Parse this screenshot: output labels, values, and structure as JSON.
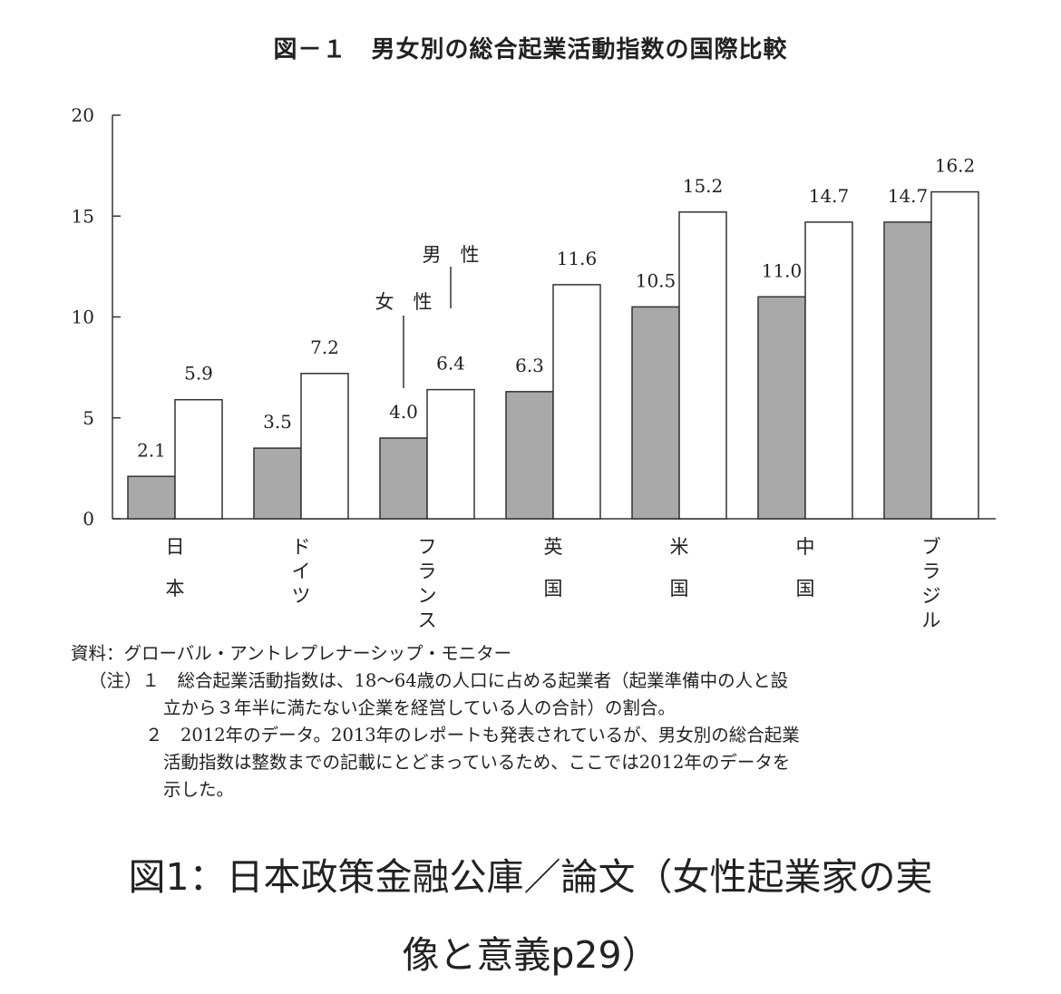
{
  "chart_data": {
    "type": "bar",
    "title": "図－１　男女別の総合起業活動指数の国際比較",
    "categories": [
      "日本",
      "ドイツ",
      "フランス",
      "英国",
      "米国",
      "中国",
      "ブラジル"
    ],
    "series": [
      {
        "name": "女　性",
        "color": "#a9a9a9",
        "values": [
          2.1,
          3.5,
          4.0,
          6.3,
          10.5,
          11.0,
          14.7
        ]
      },
      {
        "name": "男　性",
        "color": "#ffffff",
        "values": [
          5.9,
          7.2,
          6.4,
          11.6,
          15.2,
          14.7,
          16.2
        ]
      }
    ],
    "value_labels": {
      "female": [
        "2.1",
        "3.5",
        "4.0",
        "6.3",
        "10.5",
        "11.0",
        "14.7"
      ],
      "male": [
        "5.9",
        "7.2",
        "6.4",
        "11.6",
        "15.2",
        "14.7",
        "16.2"
      ]
    },
    "ylim": [
      0,
      20
    ],
    "yticks": [
      0,
      5,
      10,
      15,
      20
    ],
    "xlabel": "",
    "ylabel": "",
    "legend": "callouts on France bars",
    "grid": false
  },
  "notes": {
    "source": "資料：グローバル・アントレプレナーシップ・モニター",
    "note1_line1": "（注）１　総合起業活動指数は、18～64歳の人口に占める起業者（起業準備中の人と設",
    "note1_line2": "立から３年半に満たない企業を経営している人の合計）の割合。",
    "note2_line1": "２　2012年のデータ。2013年のレポートも発表されているが、男女別の総合起業",
    "note2_line2": "活動指数は整数までの記載にとどまっているため、ここでは2012年のデータを",
    "note2_line3": "示した。"
  },
  "caption": {
    "line1": "図1：日本政策金融公庫／論文（女性起業家の実",
    "line2": "像と意義p29）"
  }
}
